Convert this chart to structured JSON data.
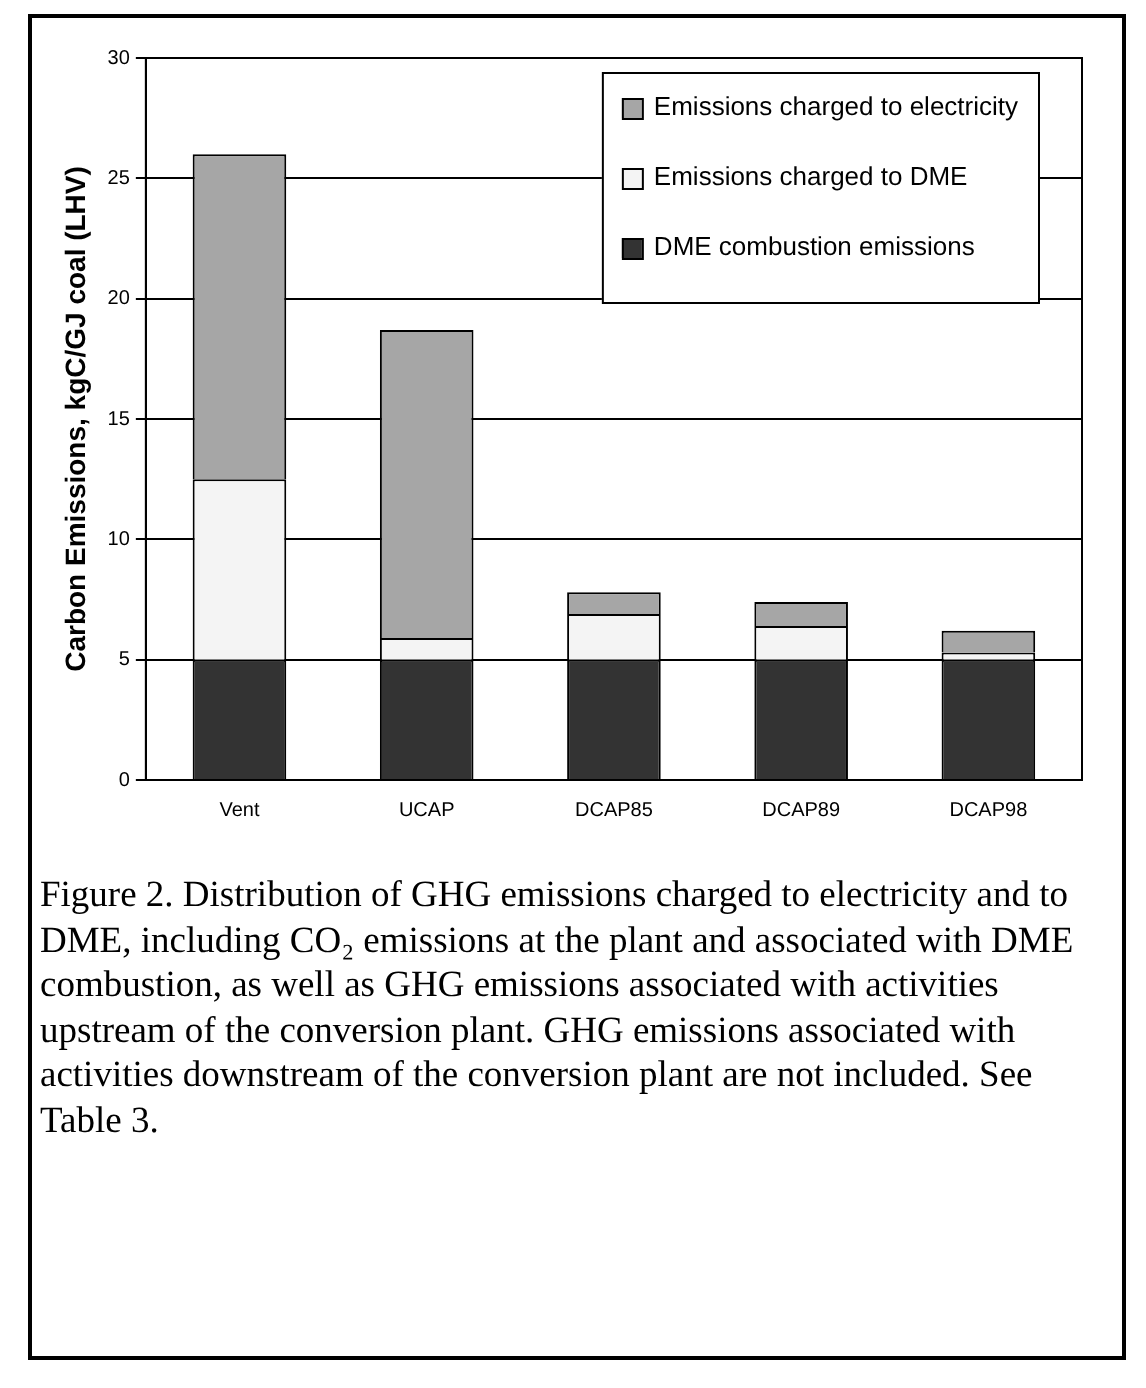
{
  "chart_data": {
    "type": "bar",
    "stacked": true,
    "categories": [
      "Vent",
      "UCAP",
      "DCAP85",
      "DCAP89",
      "DCAP98"
    ],
    "ylabel": "Carbon Emissions, kgC/GJ coal (LHV)",
    "series": [
      {
        "name": "DME combustion emissions",
        "color": "#333333",
        "values": [
          5.0,
          5.0,
          5.0,
          5.0,
          5.0
        ]
      },
      {
        "name": "Emissions charged to DME",
        "color": "#f4f4f4",
        "values": [
          7.5,
          0.9,
          1.9,
          1.4,
          0.3
        ]
      },
      {
        "name": "Emissions charged to electricity",
        "color": "#a6a6a6",
        "values": [
          13.5,
          12.8,
          0.9,
          1.0,
          0.9
        ]
      }
    ],
    "ylim": [
      0,
      30
    ],
    "yticks": [
      0,
      5,
      10,
      15,
      20,
      25,
      30
    ],
    "grid": "y",
    "legend": "top right",
    "annotations": [
      "Figure 2. Distribution of GHG emissions charged to electricity and to DME, including CO₂ emissions at the plant and associated with DME combustion, as well as GHG emissions associated with activities upstream of the conversion plant. GHG emissions associated with activities downstream of the conversion plant are not included. See Table 3."
    ]
  }
}
